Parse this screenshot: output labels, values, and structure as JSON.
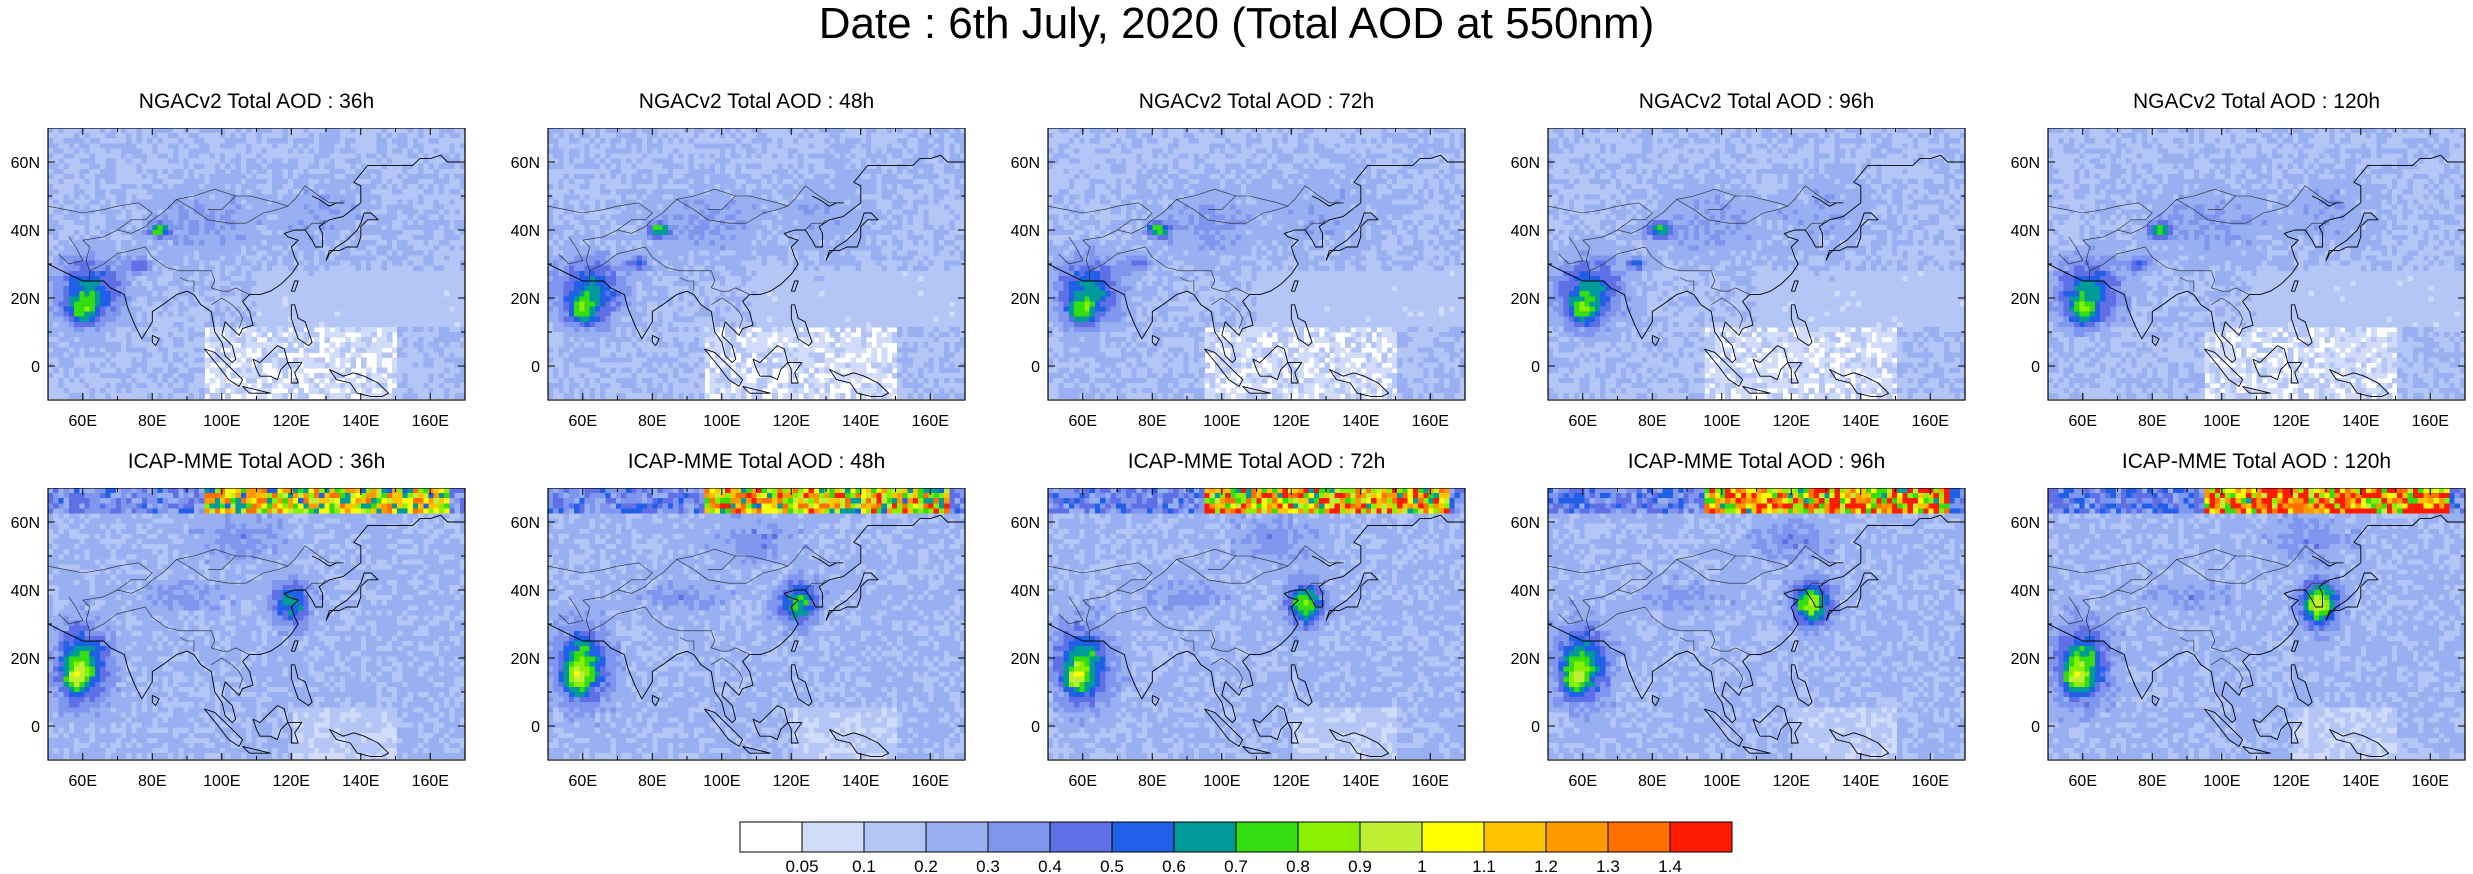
{
  "title": "Date : 6th July, 2020 (Total AOD at 550nm)",
  "axes": {
    "lat_labels": [
      "60N",
      "40N",
      "20N",
      "0"
    ],
    "lat_values": [
      60,
      40,
      20,
      0
    ],
    "lon_labels": [
      "60E",
      "80E",
      "100E",
      "120E",
      "140E",
      "160E"
    ],
    "lon_values": [
      60,
      80,
      100,
      120,
      140,
      160
    ],
    "lon_range": [
      50,
      170
    ],
    "lat_range": [
      -10,
      70
    ]
  },
  "rows": [
    {
      "model": "NGACv2",
      "panels": [
        {
          "label": "NGACv2 Total AOD : 36h"
        },
        {
          "label": "NGACv2 Total AOD : 48h"
        },
        {
          "label": "NGACv2 Total AOD : 72h"
        },
        {
          "label": "NGACv2 Total AOD : 96h"
        },
        {
          "label": "NGACv2 Total AOD : 120h"
        }
      ]
    },
    {
      "model": "ICAP-MME",
      "panels": [
        {
          "label": "ICAP-MME Total AOD : 36h"
        },
        {
          "label": "ICAP-MME Total AOD : 48h"
        },
        {
          "label": "ICAP-MME Total AOD : 72h"
        },
        {
          "label": "ICAP-MME Total AOD : 96h"
        },
        {
          "label": "ICAP-MME Total AOD : 120h"
        }
      ]
    }
  ],
  "colorbar": {
    "labels": [
      "0.05",
      "0.1",
      "0.2",
      "0.3",
      "0.4",
      "0.5",
      "0.6",
      "0.7",
      "0.8",
      "0.9",
      "1",
      "1.1",
      "1.2",
      "1.3",
      "1.4"
    ],
    "colors": [
      "#ffffff",
      "#d0dcfa",
      "#b3c6f5",
      "#98b0f2",
      "#7f96ef",
      "#5f70e6",
      "#1f60e6",
      "#009a9a",
      "#33dd11",
      "#88f000",
      "#bff033",
      "#ffff00",
      "#ffc400",
      "#ff9900",
      "#ff7000",
      "#ff1a00"
    ]
  }
}
